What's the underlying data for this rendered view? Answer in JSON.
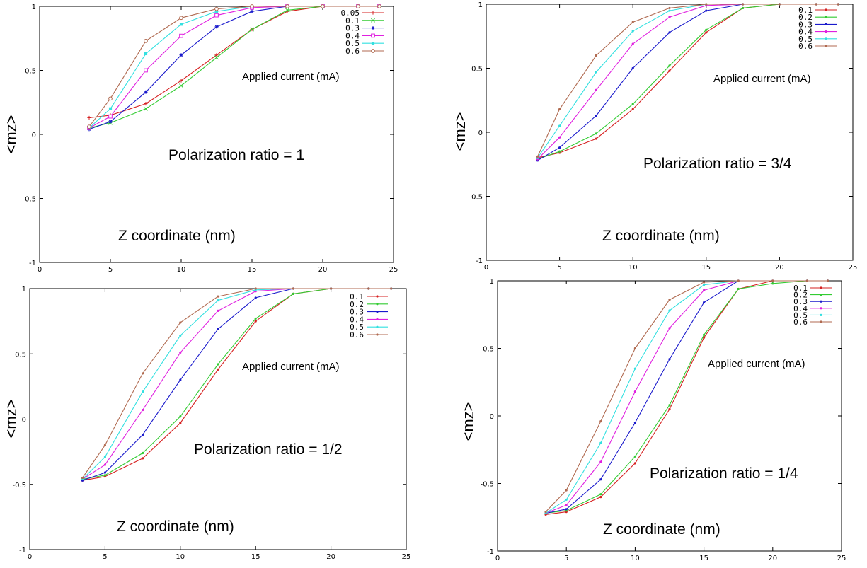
{
  "chart_data": [
    {
      "type": "line",
      "title": "Polarization ratio = 1",
      "xlabel": "Z coordinate (nm)",
      "ylabel": "<mz>",
      "legend_title": "Applied current (mA)",
      "legend_position": "top-right",
      "xlim": [
        0,
        25
      ],
      "ylim": [
        -1,
        1
      ],
      "xticks": [
        "0",
        "5",
        "10",
        "15",
        "20",
        "25"
      ],
      "yticks": [
        "-1",
        "-0.5",
        "0",
        "0.5",
        "1"
      ],
      "grid": false,
      "series": [
        {
          "name": "0.05",
          "color": "#d62020",
          "marker": "plus",
          "x": [
            3.5,
            5,
            7.5,
            10,
            12.5,
            15,
            17.5,
            20,
            22.5,
            24
          ],
          "y": [
            0.13,
            0.15,
            0.24,
            0.42,
            0.62,
            0.82,
            0.96,
            1,
            1,
            1
          ]
        },
        {
          "name": "0.1",
          "color": "#33cc33",
          "marker": "x",
          "x": [
            3.5,
            5,
            7.5,
            10,
            12.5,
            15,
            17.5,
            20,
            22.5,
            24
          ],
          "y": [
            0.05,
            0.09,
            0.2,
            0.38,
            0.6,
            0.82,
            0.97,
            1,
            1,
            1
          ]
        },
        {
          "name": "0.3",
          "color": "#1a1acc",
          "marker": "star",
          "x": [
            3.5,
            5,
            7.5,
            10,
            12.5,
            15,
            17.5,
            20,
            22.5,
            24
          ],
          "y": [
            0.04,
            0.1,
            0.33,
            0.62,
            0.84,
            0.96,
            1,
            1,
            1,
            1
          ]
        },
        {
          "name": "0.4",
          "color": "#e020e0",
          "marker": "square",
          "x": [
            3.5,
            5,
            7.5,
            10,
            12.5,
            15,
            17.5,
            20,
            22.5,
            24
          ],
          "y": [
            0.05,
            0.14,
            0.5,
            0.77,
            0.93,
            0.99,
            1,
            1,
            1,
            1
          ]
        },
        {
          "name": "0.5",
          "color": "#33e0e0",
          "marker": "filledSquare",
          "x": [
            3.5,
            5,
            7.5,
            10,
            12.5,
            15,
            17.5,
            20,
            22.5,
            24
          ],
          "y": [
            0.05,
            0.2,
            0.63,
            0.86,
            0.96,
            1,
            1,
            1,
            1,
            1
          ]
        },
        {
          "name": "0.6",
          "color": "#b06a50",
          "marker": "circle",
          "x": [
            3.5,
            5,
            7.5,
            10,
            12.5,
            15,
            17.5,
            20,
            22.5,
            24
          ],
          "y": [
            0.06,
            0.28,
            0.73,
            0.91,
            0.98,
            1,
            1,
            1,
            1,
            1
          ]
        }
      ]
    },
    {
      "type": "line",
      "title": "Polarization ratio = 3/4",
      "xlabel": "Z coordinate (nm)",
      "ylabel": "<mz>",
      "legend_title": "Applied current (mA)",
      "legend_position": "top-right",
      "xlim": [
        0,
        25
      ],
      "ylim": [
        -1,
        1
      ],
      "xticks": [
        "0",
        "5",
        "10",
        "15",
        "20",
        "25"
      ],
      "yticks": [
        "-1",
        "-0.5",
        "0",
        "0.5",
        "1"
      ],
      "grid": false,
      "series": [
        {
          "name": "0.1",
          "color": "#d62020",
          "marker": "dot",
          "x": [
            3.5,
            5,
            7.5,
            10,
            12.5,
            15,
            17.5,
            20,
            22.5,
            24
          ],
          "y": [
            -0.2,
            -0.16,
            -0.05,
            0.18,
            0.48,
            0.78,
            0.97,
            1,
            1,
            1
          ]
        },
        {
          "name": "0.2",
          "color": "#33cc33",
          "marker": "dot",
          "x": [
            3.5,
            5,
            7.5,
            10,
            12.5,
            15,
            17.5,
            20,
            22.5,
            24
          ],
          "y": [
            -0.21,
            -0.15,
            -0.01,
            0.22,
            0.52,
            0.8,
            0.97,
            1,
            1,
            1
          ]
        },
        {
          "name": "0.3",
          "color": "#1a1acc",
          "marker": "dot",
          "x": [
            3.5,
            5,
            7.5,
            10,
            12.5,
            15,
            17.5,
            20,
            22.5,
            24
          ],
          "y": [
            -0.22,
            -0.12,
            0.13,
            0.5,
            0.78,
            0.95,
            1,
            1,
            1,
            1
          ]
        },
        {
          "name": "0.4",
          "color": "#e020e0",
          "marker": "dot",
          "x": [
            3.5,
            5,
            7.5,
            10,
            12.5,
            15,
            17.5,
            20,
            22.5,
            24
          ],
          "y": [
            -0.21,
            -0.04,
            0.33,
            0.69,
            0.9,
            0.99,
            1,
            1,
            1,
            1
          ]
        },
        {
          "name": "0.5",
          "color": "#33e0e0",
          "marker": "dot",
          "x": [
            3.5,
            5,
            7.5,
            10,
            12.5,
            15,
            17.5,
            20,
            22.5,
            24
          ],
          "y": [
            -0.2,
            0.05,
            0.47,
            0.79,
            0.95,
            1,
            1,
            1,
            1,
            1
          ]
        },
        {
          "name": "0.6",
          "color": "#b06a50",
          "marker": "dot",
          "x": [
            3.5,
            5,
            7.5,
            10,
            12.5,
            15,
            17.5,
            20,
            22.5,
            24
          ],
          "y": [
            -0.19,
            0.18,
            0.6,
            0.86,
            0.97,
            1,
            1,
            1,
            1,
            1
          ]
        }
      ]
    },
    {
      "type": "line",
      "title": "Polarization ratio = 1/2",
      "xlabel": "Z coordinate (nm)",
      "ylabel": "<mz>",
      "legend_title": "Applied current (mA)",
      "legend_position": "top-right",
      "xlim": [
        0,
        25
      ],
      "ylim": [
        -1,
        1
      ],
      "xticks": [
        "0",
        "5",
        "10",
        "15",
        "20",
        "25"
      ],
      "yticks": [
        "-1",
        "-0.5",
        "0",
        "0.5",
        "1"
      ],
      "grid": false,
      "series": [
        {
          "name": "0.1",
          "color": "#d62020",
          "marker": "dot",
          "x": [
            3.5,
            5,
            7.5,
            10,
            12.5,
            15,
            17.5,
            20,
            22.5,
            24
          ],
          "y": [
            -0.47,
            -0.44,
            -0.3,
            -0.03,
            0.38,
            0.75,
            0.96,
            1,
            1,
            1
          ]
        },
        {
          "name": "0.2",
          "color": "#33cc33",
          "marker": "dot",
          "x": [
            3.5,
            5,
            7.5,
            10,
            12.5,
            15,
            17.5,
            20,
            22.5,
            24
          ],
          "y": [
            -0.46,
            -0.43,
            -0.26,
            0.02,
            0.42,
            0.77,
            0.96,
            1,
            1,
            1
          ]
        },
        {
          "name": "0.3",
          "color": "#1a1acc",
          "marker": "dot",
          "x": [
            3.5,
            5,
            7.5,
            10,
            12.5,
            15,
            17.5,
            20,
            22.5,
            24
          ],
          "y": [
            -0.47,
            -0.41,
            -0.12,
            0.3,
            0.69,
            0.93,
            1,
            1,
            1,
            1
          ]
        },
        {
          "name": "0.4",
          "color": "#e020e0",
          "marker": "dot",
          "x": [
            3.5,
            5,
            7.5,
            10,
            12.5,
            15,
            17.5,
            20,
            22.5,
            24
          ],
          "y": [
            -0.46,
            -0.35,
            0.07,
            0.51,
            0.83,
            0.98,
            1,
            1,
            1,
            1
          ]
        },
        {
          "name": "0.5",
          "color": "#33e0e0",
          "marker": "dot",
          "x": [
            3.5,
            5,
            7.5,
            10,
            12.5,
            15,
            17.5,
            20,
            22.5,
            24
          ],
          "y": [
            -0.46,
            -0.29,
            0.21,
            0.64,
            0.91,
            0.99,
            1,
            1,
            1,
            1
          ]
        },
        {
          "name": "0.6",
          "color": "#b06a50",
          "marker": "dot",
          "x": [
            3.5,
            5,
            7.5,
            10,
            12.5,
            15,
            17.5,
            20,
            22.5,
            24
          ],
          "y": [
            -0.45,
            -0.2,
            0.35,
            0.74,
            0.94,
            1,
            1,
            1,
            1,
            1
          ]
        }
      ]
    },
    {
      "type": "line",
      "title": "Polarization ratio = 1/4",
      "xlabel": "Z coordinate (nm)",
      "ylabel": "<mz>",
      "legend_title": "Applied current (mA)",
      "legend_position": "top-right",
      "xlim": [
        0,
        25
      ],
      "ylim": [
        -1,
        1
      ],
      "xticks": [
        "0",
        "5",
        "10",
        "15",
        "20",
        "25"
      ],
      "yticks": [
        "-1",
        "-0.5",
        "0",
        "0.5",
        "1"
      ],
      "grid": false,
      "series": [
        {
          "name": "0.1",
          "color": "#d62020",
          "marker": "dot",
          "x": [
            3.5,
            5,
            7.5,
            10,
            12.5,
            15,
            17.5,
            20,
            22.5,
            24
          ],
          "y": [
            -0.73,
            -0.71,
            -0.6,
            -0.35,
            0.05,
            0.58,
            0.94,
            1,
            1,
            1
          ]
        },
        {
          "name": "0.2",
          "color": "#33cc33",
          "marker": "dot",
          "x": [
            3.5,
            5,
            7.5,
            10,
            12.5,
            15,
            17.5,
            20,
            22.5,
            24
          ],
          "y": [
            -0.72,
            -0.7,
            -0.58,
            -0.3,
            0.08,
            0.6,
            0.94,
            0.98,
            1,
            1
          ]
        },
        {
          "name": "0.3",
          "color": "#1a1acc",
          "marker": "dot",
          "x": [
            3.5,
            5,
            7.5,
            10,
            12.5,
            15,
            17.5,
            20,
            22.5,
            24
          ],
          "y": [
            -0.72,
            -0.69,
            -0.47,
            -0.05,
            0.42,
            0.84,
            1,
            1,
            1,
            1
          ]
        },
        {
          "name": "0.4",
          "color": "#e020e0",
          "marker": "dot",
          "x": [
            3.5,
            5,
            7.5,
            10,
            12.5,
            15,
            17.5,
            20,
            22.5,
            24
          ],
          "y": [
            -0.72,
            -0.66,
            -0.34,
            0.18,
            0.65,
            0.93,
            1,
            1,
            1,
            1
          ]
        },
        {
          "name": "0.5",
          "color": "#33e0e0",
          "marker": "dot",
          "x": [
            3.5,
            5,
            7.5,
            10,
            12.5,
            15,
            17.5,
            20,
            22.5,
            24
          ],
          "y": [
            -0.72,
            -0.62,
            -0.2,
            0.35,
            0.78,
            0.97,
            1,
            1,
            1,
            1
          ]
        },
        {
          "name": "0.6",
          "color": "#b06a50",
          "marker": "dot",
          "x": [
            3.5,
            5,
            7.5,
            10,
            12.5,
            15,
            17.5,
            20,
            22.5,
            24
          ],
          "y": [
            -0.71,
            -0.55,
            -0.04,
            0.5,
            0.86,
            0.99,
            1,
            1,
            1,
            1
          ]
        }
      ]
    }
  ]
}
